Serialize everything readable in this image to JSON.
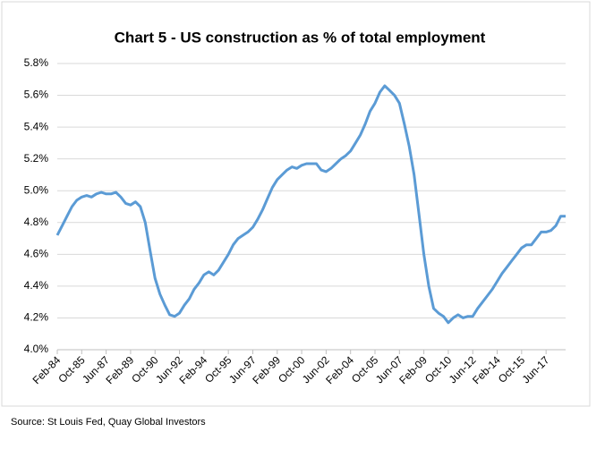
{
  "chart_data": {
    "type": "line",
    "title": "Chart 5 - US construction as % of total employment",
    "source": "Source: St Louis Fed, Quay Global Investors",
    "categories": [
      "Feb-84",
      null,
      null,
      null,
      null,
      "Oct-85",
      null,
      null,
      null,
      null,
      "Jun-87",
      null,
      null,
      null,
      null,
      "Feb-89",
      null,
      null,
      null,
      null,
      "Oct-90",
      null,
      null,
      null,
      null,
      "Jun-92",
      null,
      null,
      null,
      null,
      "Feb-94",
      null,
      null,
      null,
      null,
      "Oct-95",
      null,
      null,
      null,
      null,
      "Jun-97",
      null,
      null,
      null,
      null,
      "Feb-99",
      null,
      null,
      null,
      null,
      "Oct-00",
      null,
      null,
      null,
      null,
      "Jun-02",
      null,
      null,
      null,
      null,
      "Feb-04",
      null,
      null,
      null,
      null,
      "Oct-05",
      null,
      null,
      null,
      null,
      "Jun-07",
      null,
      null,
      null,
      null,
      "Feb-09",
      null,
      null,
      null,
      null,
      "Oct-10",
      null,
      null,
      null,
      null,
      "Jun-12",
      null,
      null,
      null,
      null,
      "Feb-14",
      null,
      null,
      null,
      null,
      "Oct-15",
      null,
      null,
      null,
      null,
      "Jun-17",
      null,
      null,
      null,
      null
    ],
    "values": [
      4.72,
      4.78,
      4.84,
      4.9,
      4.94,
      4.96,
      4.97,
      4.96,
      4.98,
      4.99,
      4.98,
      4.98,
      4.99,
      4.96,
      4.92,
      4.91,
      4.93,
      4.9,
      4.8,
      4.62,
      4.45,
      4.35,
      4.28,
      4.22,
      4.21,
      4.23,
      4.28,
      4.32,
      4.38,
      4.42,
      4.47,
      4.49,
      4.47,
      4.5,
      4.55,
      4.6,
      4.66,
      4.7,
      4.72,
      4.74,
      4.77,
      4.82,
      4.88,
      4.95,
      5.02,
      5.07,
      5.1,
      5.13,
      5.15,
      5.14,
      5.16,
      5.17,
      5.17,
      5.17,
      5.13,
      5.12,
      5.14,
      5.17,
      5.2,
      5.22,
      5.25,
      5.3,
      5.35,
      5.42,
      5.5,
      5.55,
      5.62,
      5.66,
      5.63,
      5.6,
      5.55,
      5.42,
      5.28,
      5.1,
      4.85,
      4.6,
      4.4,
      4.26,
      4.23,
      4.21,
      4.17,
      4.2,
      4.22,
      4.2,
      4.21,
      4.21,
      4.26,
      4.3,
      4.34,
      4.38,
      4.43,
      4.48,
      4.52,
      4.56,
      4.6,
      4.64,
      4.66,
      4.66,
      4.7,
      4.74,
      4.74,
      4.75,
      4.78,
      4.84,
      4.84
    ],
    "color": "#5b9bd5",
    "ylim": [
      4.0,
      5.8
    ],
    "yticks": [
      {
        "value": 4.0,
        "label": "4.0%"
      },
      {
        "value": 4.2,
        "label": "4.2%"
      },
      {
        "value": 4.4,
        "label": "4.4%"
      },
      {
        "value": 4.6,
        "label": "4.6%"
      },
      {
        "value": 4.8,
        "label": "4.8%"
      },
      {
        "value": 5.0,
        "label": "5.0%"
      },
      {
        "value": 5.2,
        "label": "5.2%"
      },
      {
        "value": 5.4,
        "label": "5.4%"
      },
      {
        "value": 5.6,
        "label": "5.6%"
      },
      {
        "value": 5.8,
        "label": "5.8%"
      }
    ],
    "grid": true
  }
}
